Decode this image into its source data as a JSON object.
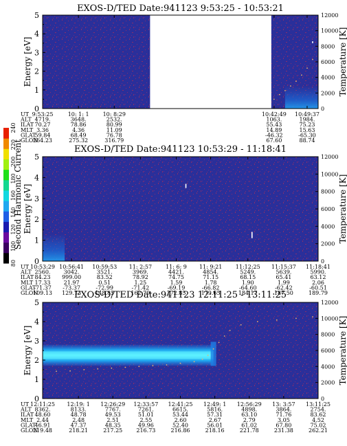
{
  "colors": {
    "background": "#2a2f9a",
    "noise": "#8a2f6a",
    "low_noise": "#1a6ad8",
    "band_core": "#5ef2ff",
    "band_edge": "#1e7fe6",
    "temp_points": "#e8b070",
    "spike": "#ffffff"
  },
  "colorbar": {
    "label": "Second Harmonic Current",
    "ticks": [
      "80",
      "100",
      "120",
      "140",
      "160",
      "180",
      "200",
      "220",
      "240"
    ],
    "colors": [
      "#000000",
      "#3a0060",
      "#6a0aa0",
      "#1a1ab0",
      "#1f5fe6",
      "#1fa8f0",
      "#12d8e0",
      "#14d890",
      "#1fe01a",
      "#a0f010",
      "#f0e000",
      "#f08a00",
      "#e82000"
    ]
  },
  "chart_data": [
    {
      "type": "heatmap",
      "title": "EXOS-D/TED   Date:941123  9:53:25 - 10:53:21",
      "ylabel": "Energy [eV]",
      "y2label": "Temperature [K]",
      "ylim": [
        0,
        5
      ],
      "y2lim": [
        0,
        12000
      ],
      "yticks": [
        "0",
        "1",
        "2",
        "3",
        "4",
        "5"
      ],
      "y2ticks": [
        "0",
        "2000",
        "4000",
        "6000",
        "8000",
        "10000",
        "12000"
      ],
      "data_gap": [
        0.39,
        0.83
      ],
      "band": null,
      "spikes": [
        {
          "t": 0.98,
          "energy": [
            3.5,
            3.6
          ]
        }
      ],
      "low_noise": {
        "t": [
          0.88,
          1.0
        ],
        "energy": [
          0,
          1.2
        ]
      },
      "temperature_points": [
        [
          0.84,
          1200
        ],
        [
          0.86,
          1800
        ],
        [
          0.88,
          2300
        ],
        [
          0.9,
          2900
        ],
        [
          0.92,
          3500
        ],
        [
          0.94,
          4300
        ],
        [
          0.96,
          5200
        ],
        [
          0.98,
          6300
        ]
      ],
      "row_labels": [
        "UT",
        "ALT",
        "ILAT",
        "MLT",
        "GLAT",
        "GLON"
      ],
      "columns": [
        {
          "pos": 0.0,
          "values": [
            "9:53:25",
            "4719.",
            "70.27",
            "3.36",
            "59.84",
            "264.23"
          ]
        },
        {
          "pos": 0.13,
          "values": [
            "10: 1: 1",
            "3648.",
            "78.86",
            "4.36",
            "68.49",
            "275.32"
          ]
        },
        {
          "pos": 0.26,
          "values": [
            "10: 8:29",
            "2532.",
            "80.99",
            "11.09",
            "76.78",
            "316.79"
          ]
        },
        {
          "pos": 0.84,
          "values": [
            "10:42:49",
            "1063.",
            "55.43",
            "14.89",
            "-46.32",
            "67.60"
          ]
        },
        {
          "pos": 0.96,
          "values": [
            "10:49:37",
            "1984.",
            "75.23",
            "15.63",
            "-65.30",
            "88.74"
          ]
        }
      ]
    },
    {
      "type": "heatmap",
      "title": "EXOS-D/TED   Date:941123  10:53:29 - 11:18:41",
      "ylabel": "Energy [eV]",
      "y2label": "Temperature [K]",
      "ylim": [
        0,
        5
      ],
      "y2lim": [
        0,
        12000
      ],
      "yticks": [
        "0",
        "1",
        "2",
        "3",
        "4",
        "5"
      ],
      "y2ticks": [
        "0",
        "2000",
        "4000",
        "6000",
        "8000",
        "10000",
        "12000"
      ],
      "data_gap": null,
      "band": null,
      "spikes": [
        {
          "t": 0.76,
          "energy": [
            1.1,
            1.4
          ]
        },
        {
          "t": 0.52,
          "energy": [
            3.5,
            3.7
          ]
        }
      ],
      "low_noise": {
        "t": [
          0.0,
          0.08
        ],
        "energy": [
          0,
          1.3
        ]
      },
      "temperature_points": [],
      "row_labels": [
        "UT",
        "ALT",
        "ILAT",
        "MLT",
        "GLAT",
        "GLON"
      ],
      "columns": [
        {
          "pos": 0.0,
          "values": [
            "10:53:29",
            "2560.",
            "84.23",
            "17.33",
            "-71.37",
            "109.13"
          ]
        },
        {
          "pos": 0.105,
          "values": [
            "10:56:41",
            "3042.",
            "999.00",
            "21.97",
            "-73.37",
            "129.73"
          ]
        },
        {
          "pos": 0.225,
          "values": [
            "10:59:53",
            "3521.",
            "83.52",
            "0.51",
            "-72.99",
            "148.85"
          ]
        },
        {
          "pos": 0.355,
          "values": [
            "11: 2:57",
            "3969.",
            "78.92",
            "1.25",
            "-71.42",
            "162.79"
          ]
        },
        {
          "pos": 0.485,
          "values": [
            "11: 6: 9",
            "4421.",
            "74.75",
            "1.59",
            "-69.19",
            "172.85"
          ]
        },
        {
          "pos": 0.61,
          "values": [
            "11: 9:21",
            "4854.",
            "71.15",
            "1.78",
            "-66.82",
            "179.65"
          ]
        },
        {
          "pos": 0.745,
          "values": [
            "11:12:25",
            "5249.",
            "68.15",
            "1.90",
            "-64.60",
            "184.17"
          ]
        },
        {
          "pos": 0.875,
          "values": [
            "11:15:37",
            "5639.",
            "65.41",
            "1.99",
            "-62.42",
            "187.50"
          ]
        },
        {
          "pos": 1.0,
          "values": [
            "11:18:41",
            "5990.",
            "63.12",
            "2.06",
            "-60.51",
            "189.79"
          ]
        }
      ]
    },
    {
      "type": "heatmap",
      "title": "EXOS-D/TED   Date:941123  12:11:25 - 13:11:25",
      "ylabel": "Energy [eV]",
      "y2label": "Temperature [K]",
      "ylim": [
        0,
        5
      ],
      "y2lim": [
        0,
        12000
      ],
      "yticks": [
        "0",
        "1",
        "2",
        "3",
        "4",
        "5"
      ],
      "y2ticks": [
        "0",
        "2000",
        "4000",
        "6000",
        "8000",
        "10000",
        "12000"
      ],
      "data_gap": null,
      "band": {
        "t": [
          0.0,
          0.62
        ],
        "energy": [
          1.7,
          2.8
        ],
        "core": [
          2.05,
          2.45
        ]
      },
      "spikes": [],
      "low_noise": null,
      "temperature_points": [
        [
          0.0,
          3500
        ],
        [
          0.05,
          3400
        ],
        [
          0.1,
          3450
        ],
        [
          0.15,
          3600
        ],
        [
          0.2,
          3700
        ],
        [
          0.25,
          3800
        ],
        [
          0.3,
          3900
        ],
        [
          0.35,
          4000
        ],
        [
          0.4,
          4100
        ],
        [
          0.45,
          4200
        ],
        [
          0.5,
          4400
        ],
        [
          0.55,
          4600
        ],
        [
          0.58,
          4900
        ],
        [
          0.6,
          5400
        ],
        [
          0.62,
          6200
        ],
        [
          0.64,
          7000
        ],
        [
          0.66,
          7800
        ],
        [
          0.68,
          8500
        ],
        [
          0.72,
          9200
        ],
        [
          0.78,
          9600
        ],
        [
          0.85,
          9800
        ],
        [
          0.92,
          10000
        ],
        [
          0.98,
          10200
        ]
      ],
      "row_labels": [
        "UT",
        "ALT",
        "ILAT",
        "MLT",
        "GLAT",
        "GLON"
      ],
      "columns": [
        {
          "pos": 0.0,
          "values": [
            "12:11:25",
            "8362.",
            "48.60",
            "2.44",
            "46.91",
            "219.48"
          ]
        },
        {
          "pos": 0.13,
          "values": [
            "12:19: 1",
            "8133.",
            "48.78",
            "2.48",
            "47.37",
            "218.21"
          ]
        },
        {
          "pos": 0.255,
          "values": [
            "12:26:29",
            "7767.",
            "49.53",
            "2.51",
            "48.35",
            "217.25"
          ]
        },
        {
          "pos": 0.375,
          "values": [
            "12:33:57",
            "7261.",
            "51.01",
            "2.55",
            "49.96",
            "216.73"
          ]
        },
        {
          "pos": 0.5,
          "values": [
            "12:41:25",
            "6615.",
            "53.44",
            "2.60",
            "52.40",
            "216.86"
          ]
        },
        {
          "pos": 0.625,
          "values": [
            "12:49: 1",
            "5816.",
            "57.31",
            "2.67",
            "56.01",
            "218.16"
          ]
        },
        {
          "pos": 0.75,
          "values": [
            "12:56:29",
            "4898.",
            "63.10",
            "2.79",
            "61.02",
            "221.78"
          ]
        },
        {
          "pos": 0.875,
          "values": [
            "13: 3:57",
            "3864.",
            "71.76",
            "3.05",
            "67.80",
            "231.38"
          ]
        },
        {
          "pos": 1.0,
          "values": [
            "13:11:25",
            "2754.",
            "83.62",
            "4.52",
            "75.02",
            "262.21"
          ]
        }
      ]
    }
  ]
}
